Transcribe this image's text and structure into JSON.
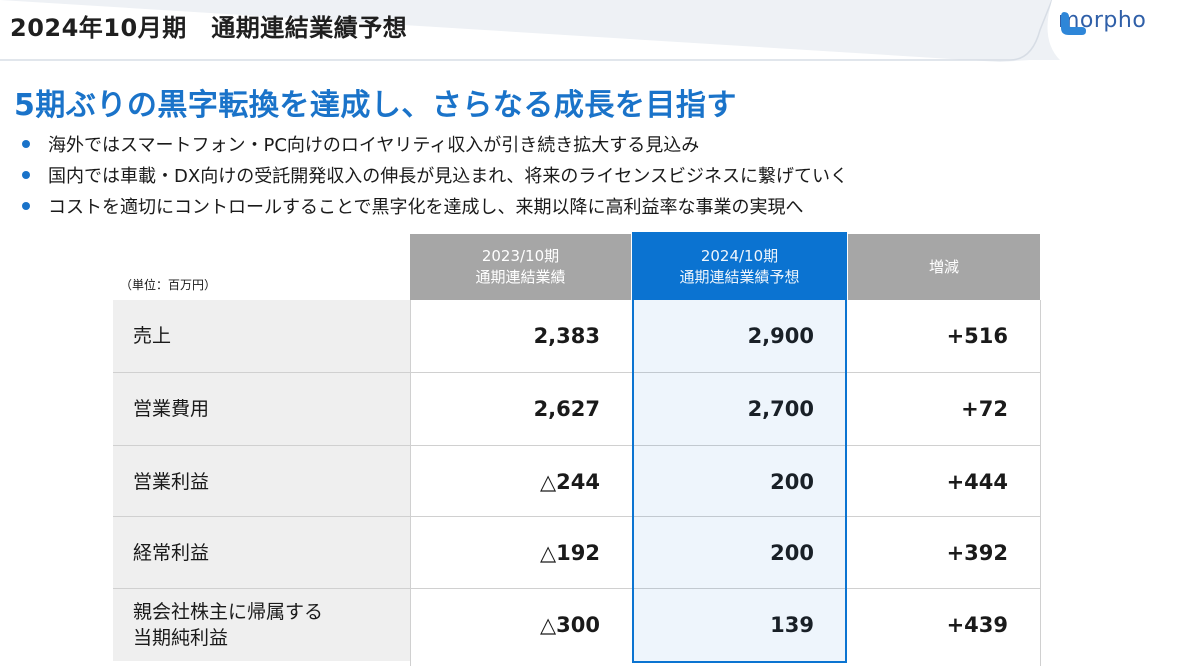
{
  "header": {
    "title": "2024年10月期　通期連結業績予想",
    "logo_text": "morpho",
    "accent_color": "#1a73c9"
  },
  "headline": "5期ぶりの黒字転換を達成し、さらなる成長を目指す",
  "bullets": [
    "海外ではスマートフォン・PC向けのロイヤリティ収入が引き続き拡大する見込み",
    "国内では車載・DX向けの受託開発収入の伸長が見込まれ、将来のライセンスビジネスに繋げていく",
    "コストを適切にコントロールすることで黒字化を達成し、来期以降に高利益率な事業の実現へ"
  ],
  "table": {
    "unit_note": "（単位：百万円）",
    "columns": [
      {
        "line1": "2023/10期",
        "line2": "通期連結業績"
      },
      {
        "line1": "2024/10期",
        "line2": "通期連結業績予想"
      },
      {
        "line1": "増減",
        "line2": ""
      }
    ],
    "rows": [
      {
        "label": "売上",
        "prev": "2,383",
        "forecast": "2,900",
        "diff": "+516"
      },
      {
        "label": "営業費用",
        "prev": "2,627",
        "forecast": "2,700",
        "diff": "+72"
      },
      {
        "label": "営業利益",
        "prev": "△244",
        "forecast": "200",
        "diff": "+444"
      },
      {
        "label": "経常利益",
        "prev": "△192",
        "forecast": "200",
        "diff": "+392"
      },
      {
        "label": "親会社株主に帰属する\n当期純利益",
        "prev": "△300",
        "forecast": "139",
        "diff": "+439"
      }
    ]
  }
}
